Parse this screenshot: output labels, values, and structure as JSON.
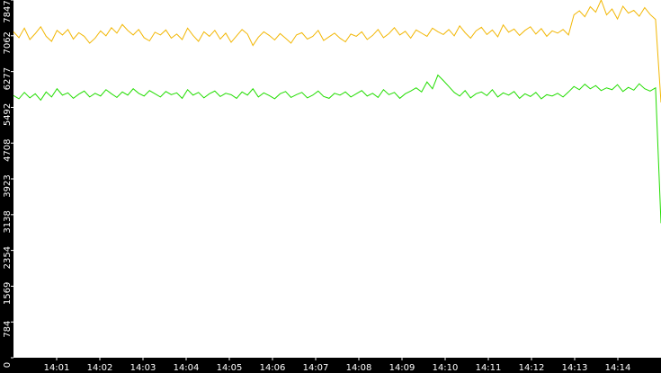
{
  "chart_data": {
    "type": "line",
    "xlim": [
      0,
      15
    ],
    "xticks": [
      {
        "value": 1,
        "label": "14:01"
      },
      {
        "value": 2,
        "label": "14:02"
      },
      {
        "value": 3,
        "label": "14:03"
      },
      {
        "value": 4,
        "label": "14:04"
      },
      {
        "value": 5,
        "label": "14:05"
      },
      {
        "value": 6,
        "label": "14:06"
      },
      {
        "value": 7,
        "label": "14:07"
      },
      {
        "value": 8,
        "label": "14:08"
      },
      {
        "value": 9,
        "label": "14:09"
      },
      {
        "value": 10,
        "label": "14:10"
      },
      {
        "value": 11,
        "label": "14:11"
      },
      {
        "value": 12,
        "label": "14:12"
      },
      {
        "value": 13,
        "label": "14:13"
      },
      {
        "value": 14,
        "label": "14:14"
      }
    ],
    "ylim": [
      0,
      7847
    ],
    "yticks": [
      0,
      784,
      1569,
      2354,
      3138,
      3923,
      4708,
      5492,
      6277,
      7062,
      7847
    ],
    "series": [
      {
        "color": "#f2b705",
        "values": [
          7150,
          7020,
          7230,
          6980,
          7110,
          7260,
          7050,
          6940,
          7180,
          7080,
          7200,
          6990,
          7130,
          7050,
          6900,
          7010,
          7170,
          7060,
          7240,
          7120,
          7310,
          7180,
          7080,
          7200,
          7020,
          6950,
          7140,
          7080,
          7190,
          7010,
          7100,
          6980,
          7230,
          7070,
          6940,
          7150,
          7050,
          7180,
          6990,
          7120,
          6920,
          7060,
          7200,
          7100,
          6850,
          7030,
          7150,
          7070,
          6970,
          7110,
          7010,
          6900,
          7080,
          7130,
          6990,
          7050,
          7180,
          6960,
          7040,
          7120,
          7010,
          6930,
          7100,
          7050,
          7150,
          6980,
          7070,
          7200,
          7020,
          7110,
          7240,
          7080,
          7160,
          7010,
          7190,
          7120,
          7050,
          7230,
          7150,
          7090,
          7200,
          7060,
          7280,
          7130,
          7010,
          7170,
          7250,
          7090,
          7190,
          7040,
          7300,
          7140,
          7210,
          7070,
          7180,
          7260,
          7100,
          7220,
          7050,
          7170,
          7120,
          7200,
          7080,
          7520,
          7610,
          7480,
          7700,
          7580,
          7847,
          7520,
          7650,
          7430,
          7710,
          7560,
          7620,
          7490,
          7680,
          7530,
          7420,
          5600
        ]
      },
      {
        "color": "#22dd00",
        "values": [
          5750,
          5680,
          5820,
          5700,
          5790,
          5650,
          5830,
          5720,
          5900,
          5760,
          5810,
          5690,
          5780,
          5850,
          5720,
          5800,
          5740,
          5880,
          5790,
          5710,
          5830,
          5760,
          5900,
          5800,
          5740,
          5860,
          5790,
          5720,
          5840,
          5770,
          5810,
          5690,
          5880,
          5760,
          5820,
          5700,
          5790,
          5850,
          5730,
          5800,
          5770,
          5690,
          5830,
          5760,
          5900,
          5720,
          5810,
          5750,
          5680,
          5790,
          5840,
          5710,
          5770,
          5820,
          5700,
          5760,
          5850,
          5730,
          5690,
          5800,
          5760,
          5830,
          5720,
          5790,
          5860,
          5740,
          5800,
          5710,
          5880,
          5770,
          5820,
          5690,
          5790,
          5850,
          5920,
          5830,
          6050,
          5900,
          6200,
          6080,
          5950,
          5820,
          5740,
          5860,
          5700,
          5790,
          5830,
          5750,
          5880,
          5720,
          5810,
          5760,
          5840,
          5690,
          5790,
          5730,
          5820,
          5680,
          5770,
          5740,
          5800,
          5720,
          5830,
          5950,
          5880,
          6000,
          5900,
          5970,
          5860,
          5920,
          5880,
          5990,
          5840,
          5930,
          5870,
          6010,
          5900,
          5850,
          5920,
          2950
        ]
      }
    ]
  }
}
